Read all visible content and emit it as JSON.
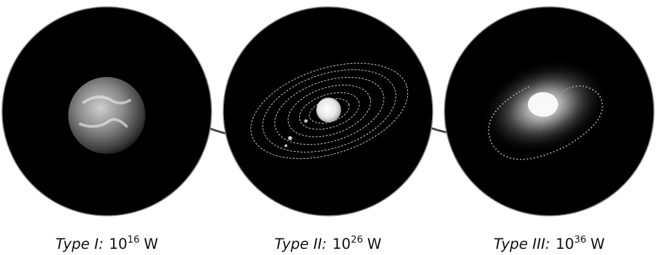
{
  "panels": [
    {
      "type": "Type I:",
      "base": "10",
      "exponent": 16,
      "unit": "W"
    },
    {
      "type": "Type II:",
      "base": "10",
      "exponent": 26,
      "unit": "W"
    },
    {
      "type": "Type III:",
      "base": "10",
      "exponent": 36,
      "unit": "W"
    }
  ]
}
